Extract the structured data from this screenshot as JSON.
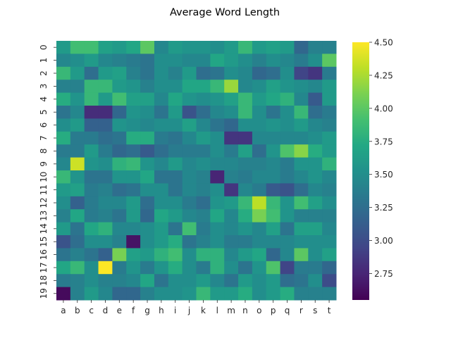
{
  "chart_data": {
    "type": "heatmap",
    "title": "Average Word Length",
    "xlabel": "",
    "ylabel": "",
    "x_categories": [
      "a",
      "b",
      "c",
      "d",
      "e",
      "f",
      "g",
      "h",
      "i",
      "j",
      "k",
      "l",
      "m",
      "n",
      "o",
      "p",
      "q",
      "r",
      "s",
      "t"
    ],
    "y_categories": [
      "0",
      "1",
      "2",
      "3",
      "4",
      "5",
      "6",
      "7",
      "8",
      "9",
      "10",
      "11",
      "12",
      "13",
      "14",
      "15",
      "16",
      "17",
      "18",
      "19"
    ],
    "colormap": "viridis",
    "vmin": 2.55,
    "vmax": 4.5,
    "colorbar_ticks": [
      "2.75",
      "3.00",
      "3.25",
      "3.50",
      "3.75",
      "4.00",
      "4.25",
      "4.50"
    ],
    "colorbar_tick_values": [
      2.75,
      3.0,
      3.25,
      3.5,
      3.75,
      4.0,
      4.25,
      4.5
    ],
    "values": [
      [
        3.6,
        3.9,
        3.9,
        3.65,
        3.6,
        3.7,
        4.0,
        3.45,
        3.6,
        3.55,
        3.55,
        3.5,
        3.6,
        3.85,
        3.6,
        3.65,
        3.6,
        3.2,
        3.4,
        3.4
      ],
      [
        3.45,
        3.5,
        3.6,
        3.45,
        3.4,
        3.35,
        3.3,
        3.5,
        3.5,
        3.45,
        3.45,
        3.7,
        3.6,
        3.5,
        3.4,
        3.5,
        3.45,
        3.35,
        3.5,
        4.0
      ],
      [
        3.85,
        3.6,
        3.25,
        3.6,
        3.65,
        3.4,
        3.3,
        3.5,
        3.4,
        3.6,
        3.25,
        3.3,
        3.5,
        3.45,
        3.2,
        3.25,
        3.5,
        2.95,
        2.85,
        3.35
      ],
      [
        3.4,
        3.4,
        3.85,
        3.85,
        3.6,
        3.55,
        3.4,
        3.5,
        3.5,
        3.7,
        3.7,
        3.85,
        4.2,
        3.45,
        3.5,
        3.65,
        3.55,
        3.5,
        3.45,
        3.6
      ],
      [
        3.75,
        3.55,
        3.85,
        3.6,
        3.9,
        3.65,
        3.65,
        3.45,
        3.7,
        3.55,
        3.5,
        3.55,
        3.65,
        3.85,
        3.6,
        3.7,
        3.8,
        3.45,
        3.1,
        3.6
      ],
      [
        3.3,
        3.45,
        2.8,
        2.8,
        3.2,
        3.55,
        3.5,
        3.3,
        3.6,
        3.05,
        3.25,
        3.45,
        3.5,
        3.85,
        3.5,
        3.3,
        3.5,
        3.85,
        3.25,
        3.35
      ],
      [
        3.5,
        3.6,
        3.15,
        3.15,
        3.55,
        3.5,
        3.45,
        3.5,
        3.5,
        3.65,
        3.45,
        3.3,
        3.2,
        3.5,
        3.5,
        3.55,
        3.5,
        3.6,
        3.45,
        3.4
      ],
      [
        3.75,
        3.35,
        3.35,
        3.25,
        3.3,
        3.75,
        3.75,
        3.35,
        3.3,
        3.45,
        3.6,
        3.5,
        2.85,
        2.85,
        3.45,
        3.45,
        3.45,
        3.45,
        3.5,
        3.6
      ],
      [
        3.35,
        3.35,
        3.6,
        3.35,
        3.2,
        3.25,
        3.1,
        3.25,
        3.35,
        3.35,
        3.35,
        3.5,
        3.35,
        3.65,
        3.25,
        3.55,
        3.95,
        4.15,
        3.75,
        3.6
      ],
      [
        3.45,
        4.35,
        3.55,
        3.5,
        3.8,
        3.85,
        3.55,
        3.45,
        3.6,
        3.45,
        3.5,
        3.45,
        3.45,
        3.4,
        3.4,
        3.45,
        3.35,
        3.55,
        3.55,
        3.8
      ],
      [
        3.85,
        3.55,
        3.3,
        3.3,
        3.55,
        3.55,
        3.7,
        3.3,
        3.3,
        3.45,
        3.4,
        2.75,
        3.4,
        3.35,
        3.45,
        3.45,
        3.35,
        3.45,
        3.55,
        3.45
      ],
      [
        3.6,
        3.65,
        3.35,
        3.4,
        3.25,
        3.3,
        3.5,
        3.5,
        3.3,
        3.45,
        3.4,
        3.5,
        2.85,
        3.45,
        3.35,
        3.1,
        3.05,
        3.25,
        3.45,
        3.4
      ],
      [
        3.5,
        3.15,
        3.35,
        3.45,
        3.45,
        3.6,
        3.25,
        3.5,
        3.5,
        3.35,
        3.25,
        3.55,
        3.6,
        3.85,
        4.3,
        3.85,
        3.55,
        3.9,
        3.65,
        3.5
      ],
      [
        3.4,
        3.7,
        3.35,
        3.4,
        3.3,
        3.6,
        3.2,
        3.7,
        3.6,
        3.45,
        3.4,
        3.7,
        3.45,
        3.75,
        4.1,
        3.9,
        3.55,
        3.4,
        3.4,
        3.4
      ],
      [
        3.6,
        3.3,
        3.7,
        3.8,
        3.45,
        3.45,
        3.5,
        3.6,
        3.3,
        3.9,
        3.35,
        3.5,
        3.45,
        3.55,
        3.45,
        3.65,
        3.3,
        3.65,
        3.65,
        3.45
      ],
      [
        3.05,
        3.25,
        3.5,
        3.5,
        3.4,
        2.65,
        3.5,
        3.6,
        3.75,
        3.3,
        3.4,
        3.5,
        3.35,
        3.35,
        3.45,
        3.45,
        3.45,
        3.5,
        3.5,
        3.5
      ],
      [
        3.3,
        3.4,
        3.3,
        3.15,
        4.1,
        3.65,
        3.6,
        3.8,
        3.9,
        3.5,
        3.8,
        3.8,
        3.45,
        3.6,
        3.7,
        3.2,
        3.45,
        4.0,
        3.5,
        3.65
      ],
      [
        3.7,
        3.85,
        3.5,
        4.5,
        3.35,
        3.55,
        3.35,
        3.55,
        3.75,
        3.5,
        3.35,
        3.8,
        3.5,
        3.3,
        3.55,
        3.95,
        2.95,
        3.35,
        3.35,
        3.2
      ],
      [
        3.35,
        3.4,
        3.5,
        3.4,
        3.4,
        3.45,
        3.7,
        3.3,
        3.5,
        3.5,
        3.6,
        3.45,
        3.3,
        3.6,
        3.5,
        3.6,
        3.25,
        3.3,
        3.5,
        3.0
      ],
      [
        2.6,
        3.4,
        3.6,
        3.45,
        3.2,
        3.2,
        3.4,
        3.5,
        3.5,
        3.55,
        3.85,
        3.6,
        3.6,
        3.75,
        3.5,
        3.6,
        3.75,
        3.4,
        3.4,
        3.4
      ]
    ]
  }
}
